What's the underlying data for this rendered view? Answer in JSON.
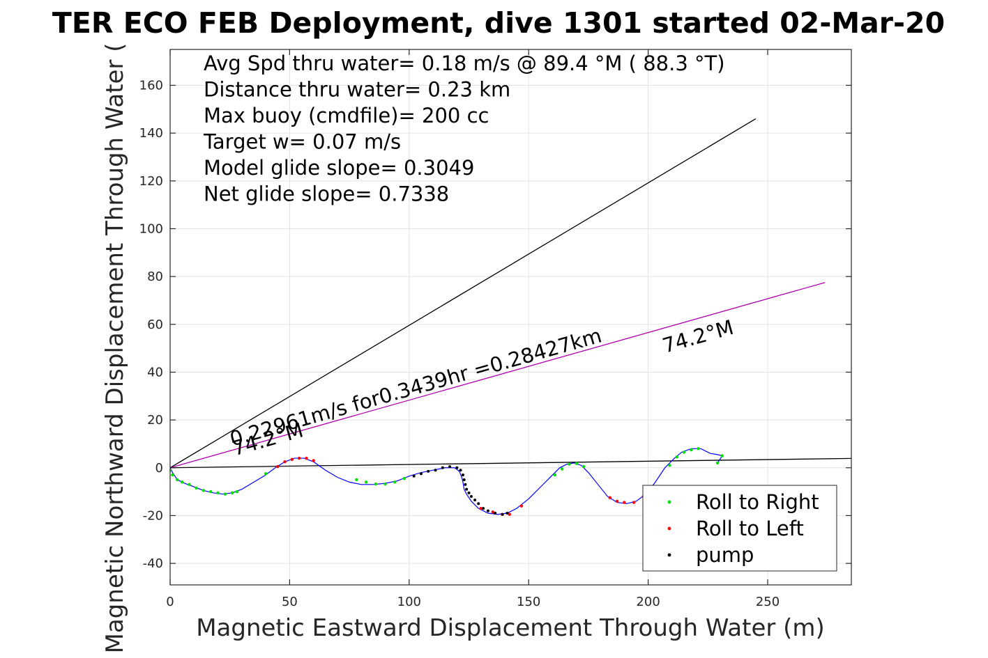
{
  "chart_data": {
    "type": "scatter",
    "title": "TER ECO FEB Deployment, dive 1301 started 02-Mar-20",
    "xlabel": "Magnetic Eastward Displacement Through Water (m)",
    "ylabel": "Magnetic Northward Displacement Through Water (",
    "xlim": [
      0,
      285
    ],
    "ylim": [
      -49,
      175
    ],
    "xticks": [
      "0",
      "50",
      "100",
      "150",
      "200",
      "250"
    ],
    "yticks": [
      "-40",
      "-20",
      "0",
      "20",
      "40",
      "60",
      "80",
      "100",
      "120",
      "140",
      "160"
    ],
    "grid": true,
    "info_lines": [
      "Avg Spd thru water=  0.18 m/s @  89.4 °M ( 88.3 °T)",
      "Distance thru water=  0.23 km",
      "Max buoy (cmdfile)= 200 cc",
      "Target w= 0.07 m/s",
      "Model glide slope= 0.3049",
      "Net glide slope= 0.7338"
    ],
    "annotations": [
      {
        "text": "0.22961m/s for0.3439hr =0.28427km",
        "x": 26,
        "y": 9,
        "angle_deg": 15.8
      },
      {
        "text": "74.2°M",
        "x": 27,
        "y": 5,
        "angle_deg": 15.8
      },
      {
        "text": "74.2°M",
        "x": 207,
        "y": 48,
        "angle_deg": 15.8
      }
    ],
    "lines": [
      {
        "name": "",
        "color": "#000000",
        "x": [
          0,
          245
        ],
        "y": [
          0,
          146
        ]
      },
      {
        "name": "",
        "color": "#b000b0",
        "x": [
          0,
          274
        ],
        "y": [
          0,
          77.5
        ]
      },
      {
        "name": "",
        "color": "#000000",
        "x": [
          0,
          285
        ],
        "y": [
          0,
          3.9
        ]
      }
    ],
    "track": {
      "color": "#0000ff",
      "x": [
        0,
        1,
        3,
        6,
        10,
        14,
        18,
        22,
        26,
        30,
        35,
        40,
        44,
        48,
        52,
        56,
        60,
        65,
        70,
        75,
        80,
        85,
        90,
        95,
        100,
        105,
        110,
        115,
        119,
        121,
        122,
        122.5,
        123,
        124,
        126,
        129,
        133,
        137,
        141,
        145,
        150,
        155,
        160,
        163,
        166,
        169,
        172,
        175,
        179,
        183,
        187,
        191,
        195,
        199,
        203,
        207,
        211,
        214,
        218,
        222,
        226,
        229,
        231,
        229
      ],
      "y": [
        0,
        -2,
        -5,
        -6.5,
        -8,
        -9.5,
        -10.5,
        -11,
        -10.5,
        -9,
        -6,
        -3,
        0,
        2.5,
        4,
        4,
        2.5,
        -1,
        -4,
        -6,
        -7,
        -7,
        -6.5,
        -5.5,
        -3.5,
        -2,
        -1,
        0,
        0,
        -1.5,
        -4,
        -6,
        -9,
        -11,
        -14,
        -17,
        -19,
        -19.5,
        -19,
        -17,
        -13,
        -8,
        -3,
        0,
        1.5,
        2,
        1,
        -2,
        -7,
        -12,
        -14.5,
        -15,
        -14,
        -11,
        -6,
        0,
        4,
        6.5,
        8,
        8,
        6,
        5.5,
        5,
        2
      ]
    },
    "markers": {
      "roll_right": {
        "color": "#00e000",
        "x": [
          0,
          1,
          3,
          5,
          8,
          11,
          14,
          17,
          20,
          23,
          26,
          28,
          40,
          78,
          82,
          86,
          90,
          94,
          98,
          161,
          164,
          167,
          170,
          173,
          209,
          212,
          215,
          218,
          221,
          229,
          231
        ],
        "y": [
          -1,
          -3,
          -5,
          -6,
          -7,
          -8.5,
          -9.5,
          -10,
          -10.5,
          -11,
          -10.5,
          -10,
          -2.5,
          -5,
          -6,
          -6.8,
          -6.8,
          -6,
          -4.5,
          -3,
          -0.5,
          1.5,
          1.8,
          0.5,
          1,
          4.5,
          6.5,
          7.5,
          8,
          2,
          5
        ]
      },
      "roll_left": {
        "color": "#ff0000",
        "x": [
          45,
          48,
          51,
          54,
          57,
          60,
          130,
          135,
          139,
          142,
          147,
          184,
          187,
          190,
          194,
          198
        ],
        "y": [
          0.5,
          2.5,
          3.5,
          4,
          4,
          3,
          -17,
          -18.5,
          -19.5,
          -19.5,
          -16,
          -12.5,
          -14,
          -14.5,
          -14.5,
          -12
        ]
      },
      "pump": {
        "color": "#000000",
        "x": [
          102,
          105,
          108,
          111,
          114,
          117,
          120,
          121.5,
          122.5,
          123,
          123.5,
          124,
          125,
          126,
          127.5,
          129,
          131,
          133,
          136,
          139,
          141
        ],
        "y": [
          -3.5,
          -2.5,
          -1.5,
          -1,
          0,
          0.5,
          0,
          -1,
          -3,
          -5,
          -7,
          -9,
          -10.5,
          -12,
          -13.5,
          -15,
          -17,
          -18,
          -19,
          -19.5,
          -19
        ]
      }
    },
    "legend": {
      "position": "bottom-right",
      "entries": [
        {
          "label": "Roll to Right",
          "color": "#00e000"
        },
        {
          "label": "Roll to Left",
          "color": "#ff0000"
        },
        {
          "label": "pump",
          "color": "#000000"
        }
      ]
    }
  }
}
